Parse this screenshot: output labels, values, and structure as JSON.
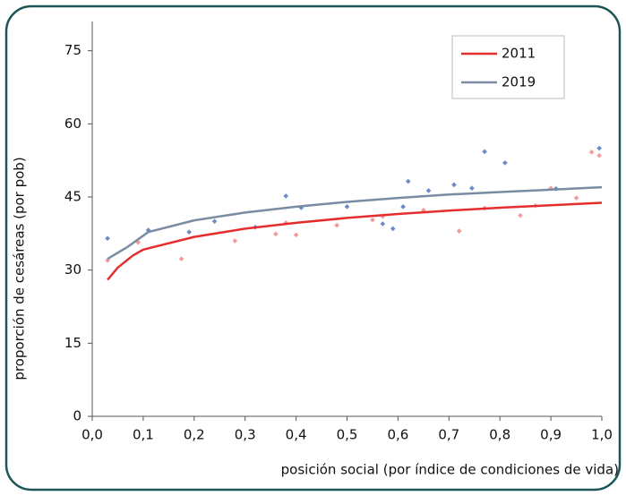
{
  "chart_data": {
    "type": "scatter-fit",
    "x_label": "posición social (por índice de condiciones de vida)",
    "y_label": "proporción de cesáreas (por pob)",
    "xlim": [
      0,
      1.0
    ],
    "ylim": [
      0,
      81
    ],
    "xticks": [
      {
        "value": 0,
        "label": "0,0"
      },
      {
        "value": 0.1,
        "label": "0,1"
      },
      {
        "value": 0.2,
        "label": "0,2"
      },
      {
        "value": 0.3,
        "label": "0,3"
      },
      {
        "value": 0.4,
        "label": "0,4"
      },
      {
        "value": 0.5,
        "label": "0,5"
      },
      {
        "value": 0.6,
        "label": "0,6"
      },
      {
        "value": 0.7,
        "label": "0,7"
      },
      {
        "value": 0.8,
        "label": "0,8"
      },
      {
        "value": 0.9,
        "label": "0,9"
      },
      {
        "value": 1.0,
        "label": "1,0"
      }
    ],
    "yticks": [
      0,
      15,
      30,
      45,
      60,
      75
    ],
    "grid": false,
    "legend": "top-right",
    "series": [
      {
        "name": "2011",
        "color": "#e52d2d",
        "point_color": "#f39a9a",
        "x": [
          0.03,
          0.09,
          0.175,
          0.28,
          0.36,
          0.38,
          0.4,
          0.48,
          0.55,
          0.57,
          0.65,
          0.72,
          0.77,
          0.84,
          0.87,
          0.9,
          0.95,
          0.98,
          0.995
        ],
        "values": [
          32,
          35.7,
          32.3,
          36,
          37.4,
          39.7,
          37.2,
          39.2,
          40.3,
          41,
          42.3,
          38,
          42.7,
          41.2,
          43.2,
          46.8,
          44.8,
          54.2,
          53.5
        ],
        "fit": {
          "x": [
            0.03,
            0.05,
            0.08,
            0.1,
            0.2,
            0.3,
            0.4,
            0.5,
            0.6,
            0.7,
            0.8,
            0.9,
            1.0
          ],
          "values": [
            28,
            30.5,
            33,
            34.2,
            36.8,
            38.5,
            39.7,
            40.7,
            41.5,
            42.2,
            42.8,
            43.3,
            43.8
          ]
        }
      },
      {
        "name": "2019",
        "color": "#7a8ca4",
        "point_color": "#6a8cc8",
        "x": [
          0.03,
          0.11,
          0.19,
          0.24,
          0.32,
          0.38,
          0.41,
          0.5,
          0.57,
          0.59,
          0.61,
          0.62,
          0.66,
          0.71,
          0.745,
          0.77,
          0.81,
          0.91,
          0.995
        ],
        "values": [
          36.5,
          38.2,
          37.8,
          40,
          38.8,
          45.2,
          42.8,
          43,
          39.5,
          38.5,
          43,
          48.2,
          46.3,
          47.5,
          46.8,
          54.3,
          52,
          46.7,
          55
        ],
        "fit": {
          "x": [
            0.03,
            0.07,
            0.11,
            0.2,
            0.3,
            0.4,
            0.5,
            0.6,
            0.7,
            0.8,
            0.9,
            1.0
          ],
          "values": [
            32.3,
            34.8,
            37.8,
            40.2,
            41.8,
            43,
            44,
            44.8,
            45.5,
            46,
            46.5,
            47
          ]
        }
      }
    ]
  }
}
